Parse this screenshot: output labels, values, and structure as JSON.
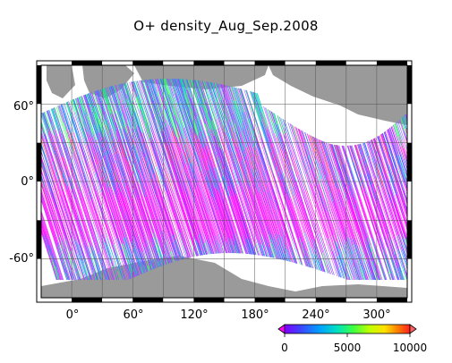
{
  "title": "O+ density_Aug_Sep.2008",
  "lat_ticks": [
    "60°",
    "0°",
    "-60°"
  ],
  "lon_ticks": [
    "0°",
    "60°",
    "120°",
    "180°",
    "240°",
    "300°"
  ],
  "colorbar": {
    "ticks": [
      "0",
      "5000",
      "10000"
    ],
    "range": [
      0,
      10000
    ],
    "colors": [
      "#8000ff",
      "#4040ff",
      "#00a0ff",
      "#00e0c0",
      "#40ff40",
      "#c0ff00",
      "#ffe000",
      "#ff8000",
      "#ff2020"
    ],
    "under_color": "#ff00ff",
    "over_color": "#ff6060"
  },
  "colors": {
    "land": "#9a9a9a",
    "ocean": "#ffffff",
    "background_magenta": "#ff10ff",
    "frame": "#000000"
  }
}
